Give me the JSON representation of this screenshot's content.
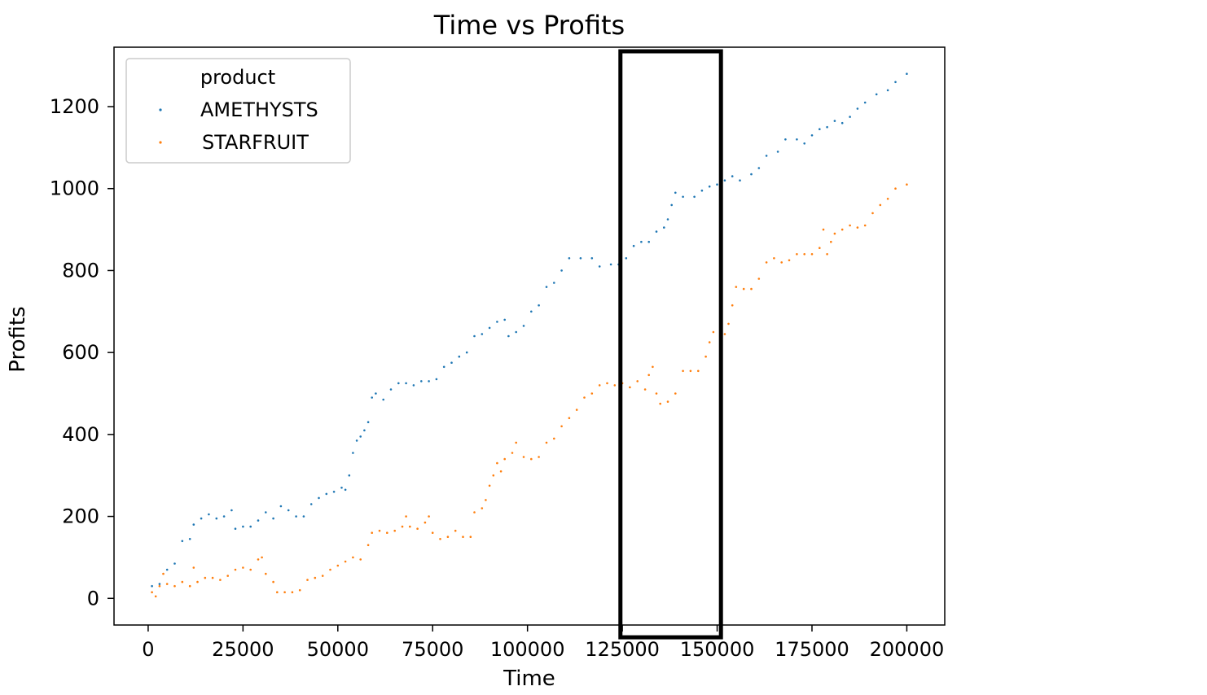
{
  "chart_data": {
    "type": "scatter",
    "title": "Time vs Profits",
    "xlabel": "Time",
    "ylabel": "Profits",
    "xlim": [
      -9000,
      210000
    ],
    "ylim": [
      -65,
      1345
    ],
    "xticks": [
      0,
      25000,
      50000,
      75000,
      100000,
      125000,
      150000,
      175000,
      200000
    ],
    "yticks": [
      0,
      200,
      400,
      600,
      800,
      1000,
      1200
    ],
    "grid": false,
    "legend": {
      "title": "product",
      "location": "upper left"
    },
    "highlight_box": {
      "x_range": [
        124500,
        151000
      ],
      "y_range": [
        -95,
        1335
      ],
      "color": "#000000"
    },
    "series": [
      {
        "name": "AMETHYSTS",
        "color": "#1f77b4",
        "points": [
          [
            1000,
            30
          ],
          [
            3000,
            35
          ],
          [
            5000,
            70
          ],
          [
            7000,
            85
          ],
          [
            9000,
            140
          ],
          [
            11000,
            145
          ],
          [
            12000,
            180
          ],
          [
            14000,
            195
          ],
          [
            16000,
            205
          ],
          [
            18000,
            195
          ],
          [
            20000,
            200
          ],
          [
            22000,
            215
          ],
          [
            23000,
            170
          ],
          [
            25000,
            175
          ],
          [
            27000,
            175
          ],
          [
            29000,
            190
          ],
          [
            31000,
            210
          ],
          [
            33000,
            195
          ],
          [
            35000,
            225
          ],
          [
            37000,
            215
          ],
          [
            39000,
            200
          ],
          [
            41000,
            200
          ],
          [
            43000,
            230
          ],
          [
            45000,
            245
          ],
          [
            47000,
            255
          ],
          [
            49000,
            260
          ],
          [
            51000,
            270
          ],
          [
            52000,
            265
          ],
          [
            53000,
            300
          ],
          [
            54000,
            355
          ],
          [
            55000,
            385
          ],
          [
            56000,
            395
          ],
          [
            57000,
            410
          ],
          [
            58000,
            430
          ],
          [
            59000,
            490
          ],
          [
            60000,
            500
          ],
          [
            62000,
            485
          ],
          [
            64000,
            510
          ],
          [
            66000,
            525
          ],
          [
            68000,
            525
          ],
          [
            70000,
            520
          ],
          [
            72000,
            530
          ],
          [
            74000,
            530
          ],
          [
            76000,
            535
          ],
          [
            78000,
            565
          ],
          [
            80000,
            575
          ],
          [
            82000,
            590
          ],
          [
            84000,
            600
          ],
          [
            86000,
            640
          ],
          [
            88000,
            645
          ],
          [
            90000,
            660
          ],
          [
            92000,
            675
          ],
          [
            94000,
            680
          ],
          [
            95000,
            640
          ],
          [
            97000,
            650
          ],
          [
            99000,
            665
          ],
          [
            101000,
            700
          ],
          [
            103000,
            715
          ],
          [
            105000,
            760
          ],
          [
            107000,
            770
          ],
          [
            109000,
            800
          ],
          [
            111000,
            830
          ],
          [
            114000,
            830
          ],
          [
            117000,
            830
          ],
          [
            119000,
            810
          ],
          [
            122000,
            815
          ],
          [
            124000,
            815
          ],
          [
            126000,
            830
          ],
          [
            128000,
            860
          ],
          [
            130000,
            870
          ],
          [
            132000,
            870
          ],
          [
            134000,
            895
          ],
          [
            136000,
            905
          ],
          [
            137000,
            925
          ],
          [
            138000,
            960
          ],
          [
            139000,
            990
          ],
          [
            141000,
            980
          ],
          [
            144000,
            980
          ],
          [
            146000,
            995
          ],
          [
            148000,
            1005
          ],
          [
            150000,
            1010
          ],
          [
            152000,
            1020
          ],
          [
            154000,
            1030
          ],
          [
            156000,
            1020
          ],
          [
            159000,
            1035
          ],
          [
            161000,
            1050
          ],
          [
            163000,
            1080
          ],
          [
            166000,
            1090
          ],
          [
            168000,
            1120
          ],
          [
            171000,
            1120
          ],
          [
            173000,
            1110
          ],
          [
            175000,
            1130
          ],
          [
            177000,
            1145
          ],
          [
            179000,
            1150
          ],
          [
            181000,
            1165
          ],
          [
            183000,
            1160
          ],
          [
            185000,
            1175
          ],
          [
            187000,
            1195
          ],
          [
            189000,
            1210
          ],
          [
            192000,
            1230
          ],
          [
            195000,
            1240
          ],
          [
            197000,
            1260
          ],
          [
            200000,
            1280
          ]
        ]
      },
      {
        "name": "STARFRUIT",
        "color": "#ff7f0e",
        "points": [
          [
            1000,
            15
          ],
          [
            2000,
            5
          ],
          [
            3000,
            30
          ],
          [
            4000,
            60
          ],
          [
            5000,
            35
          ],
          [
            7000,
            30
          ],
          [
            9000,
            40
          ],
          [
            11000,
            30
          ],
          [
            12000,
            75
          ],
          [
            13000,
            40
          ],
          [
            15000,
            50
          ],
          [
            17000,
            50
          ],
          [
            19000,
            45
          ],
          [
            21000,
            55
          ],
          [
            23000,
            70
          ],
          [
            25000,
            75
          ],
          [
            27000,
            70
          ],
          [
            29000,
            95
          ],
          [
            30000,
            100
          ],
          [
            31000,
            60
          ],
          [
            33000,
            40
          ],
          [
            34000,
            15
          ],
          [
            36000,
            15
          ],
          [
            38000,
            15
          ],
          [
            40000,
            20
          ],
          [
            42000,
            45
          ],
          [
            44000,
            50
          ],
          [
            46000,
            55
          ],
          [
            48000,
            70
          ],
          [
            50000,
            80
          ],
          [
            52000,
            90
          ],
          [
            54000,
            100
          ],
          [
            56000,
            95
          ],
          [
            58000,
            130
          ],
          [
            59000,
            160
          ],
          [
            61000,
            165
          ],
          [
            63000,
            160
          ],
          [
            65000,
            165
          ],
          [
            67000,
            175
          ],
          [
            68000,
            200
          ],
          [
            69000,
            175
          ],
          [
            71000,
            170
          ],
          [
            73000,
            185
          ],
          [
            74000,
            200
          ],
          [
            75000,
            160
          ],
          [
            77000,
            145
          ],
          [
            79000,
            150
          ],
          [
            81000,
            165
          ],
          [
            83000,
            150
          ],
          [
            85000,
            150
          ],
          [
            86000,
            210
          ],
          [
            88000,
            220
          ],
          [
            89000,
            240
          ],
          [
            90000,
            275
          ],
          [
            91000,
            300
          ],
          [
            92000,
            330
          ],
          [
            93000,
            310
          ],
          [
            94000,
            340
          ],
          [
            96000,
            355
          ],
          [
            97000,
            380
          ],
          [
            99000,
            345
          ],
          [
            101000,
            340
          ],
          [
            103000,
            345
          ],
          [
            105000,
            380
          ],
          [
            107000,
            390
          ],
          [
            109000,
            420
          ],
          [
            111000,
            440
          ],
          [
            113000,
            460
          ],
          [
            115000,
            490
          ],
          [
            117000,
            500
          ],
          [
            119000,
            520
          ],
          [
            121000,
            525
          ],
          [
            123000,
            520
          ],
          [
            125000,
            525
          ],
          [
            127000,
            515
          ],
          [
            129000,
            530
          ],
          [
            131000,
            510
          ],
          [
            132000,
            545
          ],
          [
            133000,
            565
          ],
          [
            134000,
            500
          ],
          [
            135000,
            475
          ],
          [
            137000,
            480
          ],
          [
            139000,
            500
          ],
          [
            141000,
            555
          ],
          [
            143000,
            555
          ],
          [
            145000,
            555
          ],
          [
            147000,
            590
          ],
          [
            148000,
            625
          ],
          [
            149000,
            650
          ],
          [
            151000,
            645
          ],
          [
            152000,
            645
          ],
          [
            153000,
            670
          ],
          [
            154000,
            715
          ],
          [
            155000,
            760
          ],
          [
            157000,
            755
          ],
          [
            159000,
            755
          ],
          [
            161000,
            780
          ],
          [
            163000,
            820
          ],
          [
            165000,
            830
          ],
          [
            167000,
            820
          ],
          [
            169000,
            825
          ],
          [
            171000,
            840
          ],
          [
            173000,
            840
          ],
          [
            175000,
            840
          ],
          [
            177000,
            855
          ],
          [
            178000,
            900
          ],
          [
            179000,
            840
          ],
          [
            180000,
            870
          ],
          [
            181000,
            890
          ],
          [
            183000,
            900
          ],
          [
            185000,
            910
          ],
          [
            187000,
            905
          ],
          [
            189000,
            910
          ],
          [
            191000,
            940
          ],
          [
            193000,
            960
          ],
          [
            195000,
            975
          ],
          [
            197000,
            1000
          ],
          [
            200000,
            1010
          ]
        ]
      }
    ]
  }
}
